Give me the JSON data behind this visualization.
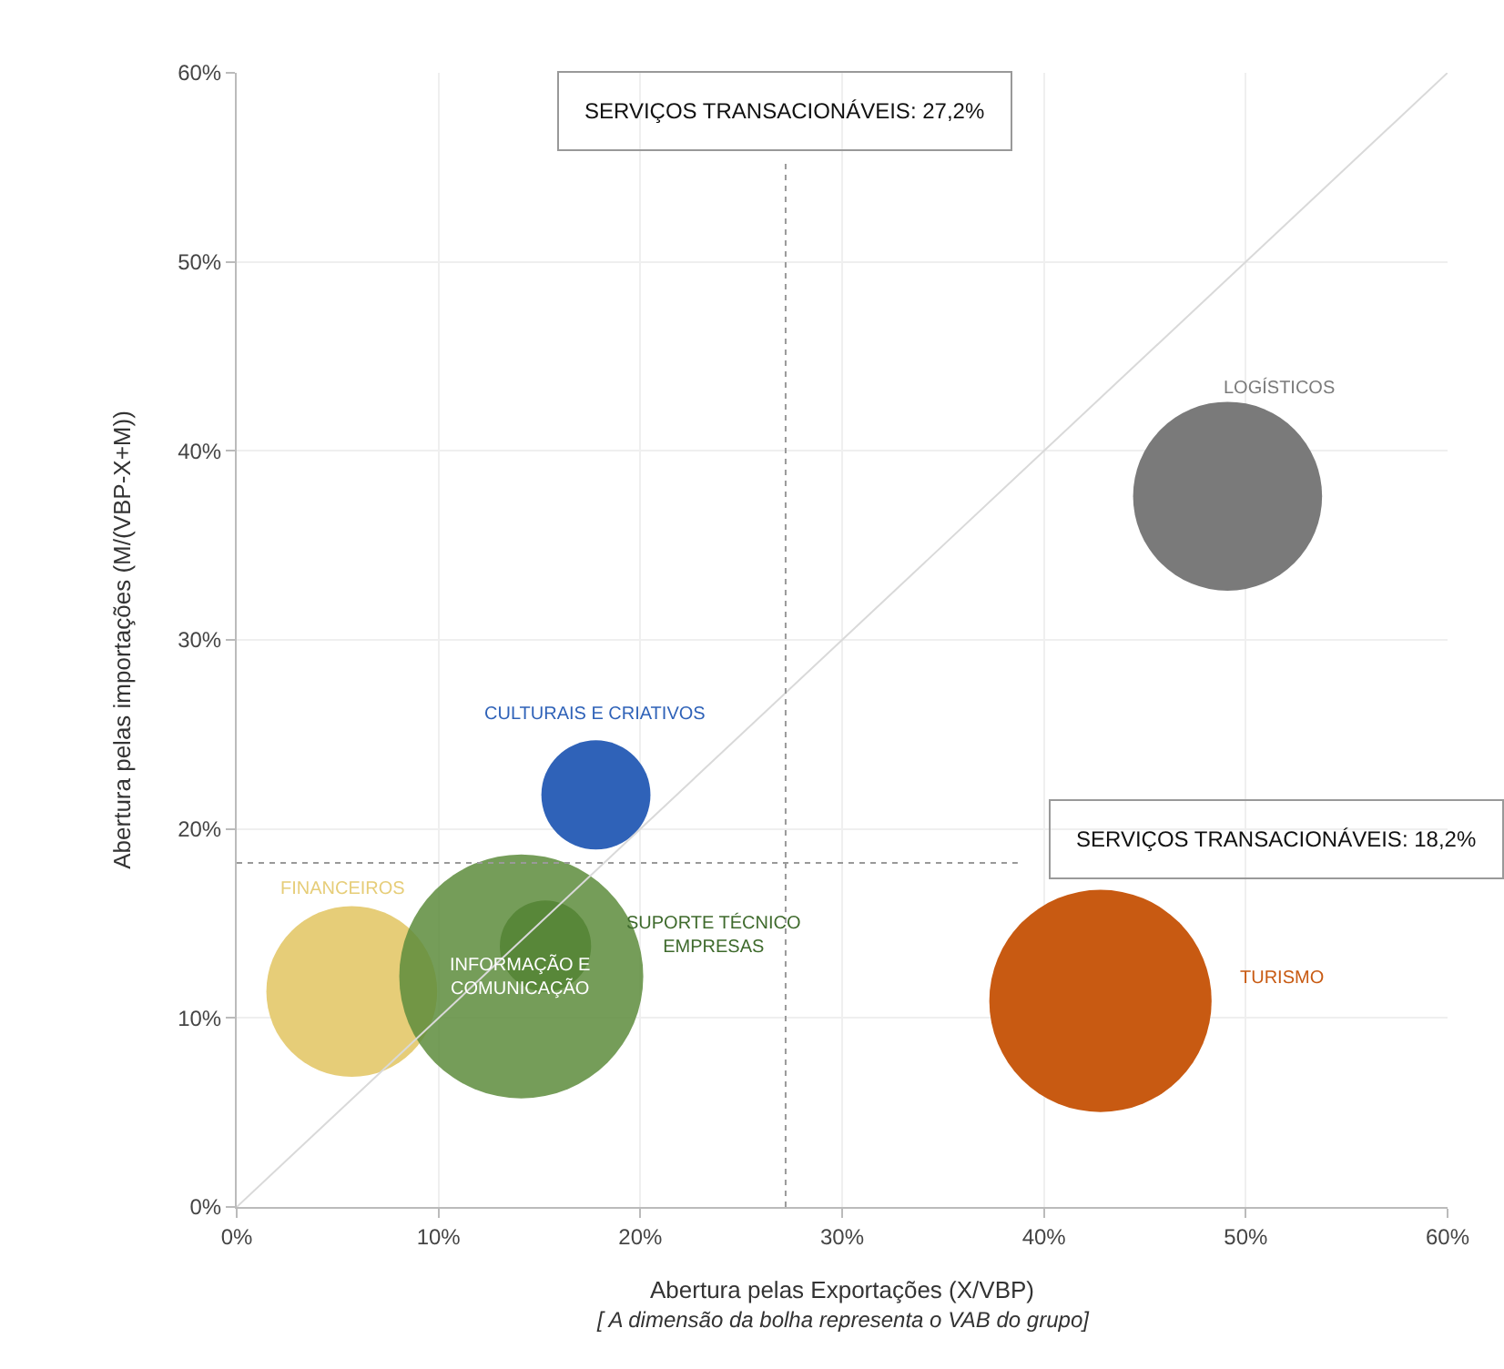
{
  "chart_data": {
    "type": "bubble",
    "xlabel": "Abertura pelas Exportações (X/VBP)",
    "ylabel": "Abertura pelas importações (M/(VBP-X+M))",
    "annotations": [
      "[ A dimensão da bolha representa o VAB do grupo]"
    ],
    "series": [
      {
        "name": "FINANCEIROS",
        "color": "#e6cd78",
        "x": [
          5.7
        ],
        "values": [
          11.4
        ],
        "sizes": [
          0.49
        ]
      },
      {
        "name": "SUPORTE TÉCNICO EMPRESAS",
        "color": "#3e6a2c",
        "x": [
          15.3
        ],
        "values": [
          13.8
        ],
        "sizes": [
          0.14
        ]
      },
      {
        "name": "INFORMAÇÃO E COMUNICAÇÃO",
        "color": "#5d8c3c",
        "x": [
          14.1
        ],
        "values": [
          12.2
        ],
        "sizes": [
          1
        ]
      },
      {
        "name": "CULTURAIS E CRIATIVOS",
        "color": "#2f62b8",
        "x": [
          17.8
        ],
        "values": [
          21.8
        ],
        "sizes": [
          0.2
        ]
      },
      {
        "name": "TURISMO",
        "color": "#c85a12",
        "x": [
          42.8
        ],
        "values": [
          10.9
        ],
        "sizes": [
          0.83
        ]
      },
      {
        "name": "LOGÍSTICOS",
        "color": "#7a7a7a",
        "x": [
          49.1
        ],
        "values": [
          37.6
        ],
        "sizes": [
          0.6
        ]
      },
      {
        "type": "line",
        "color": "#d9d9d9",
        "x": [
          0,
          60
        ],
        "values": [
          0,
          60
        ]
      }
    ],
    "ref_lines": [
      {
        "axis": "x",
        "value": 27.2,
        "label": "SERVIÇOS TRANSACIONÁVEIS: 27,2%",
        "color": "#999999",
        "line_style": "dotted"
      },
      {
        "axis": "y",
        "value": 18.2,
        "label": "SERVIÇOS TRANSACIONÁVEIS: 18,2%",
        "color": "#999999",
        "line_style": "dotted"
      }
    ],
    "xlim": [
      0,
      60
    ],
    "xticks": [
      {
        "value": 0,
        "label": "0%"
      },
      {
        "value": 10,
        "label": "10%"
      },
      {
        "value": 20,
        "label": "20%"
      },
      {
        "value": 30,
        "label": "30%"
      },
      {
        "value": 40,
        "label": "40%"
      },
      {
        "value": 50,
        "label": "50%"
      },
      {
        "value": 60,
        "label": "60%"
      }
    ],
    "ylim": [
      0,
      60
    ],
    "yticks": [
      {
        "value": 0,
        "label": "0%"
      },
      {
        "value": 10,
        "label": "10%"
      },
      {
        "value": 20,
        "label": "20%"
      },
      {
        "value": 30,
        "label": "30%"
      },
      {
        "value": 40,
        "label": "40%"
      },
      {
        "value": 50,
        "label": "50%"
      },
      {
        "value": 60,
        "label": "60%"
      }
    ],
    "grid": true
  }
}
